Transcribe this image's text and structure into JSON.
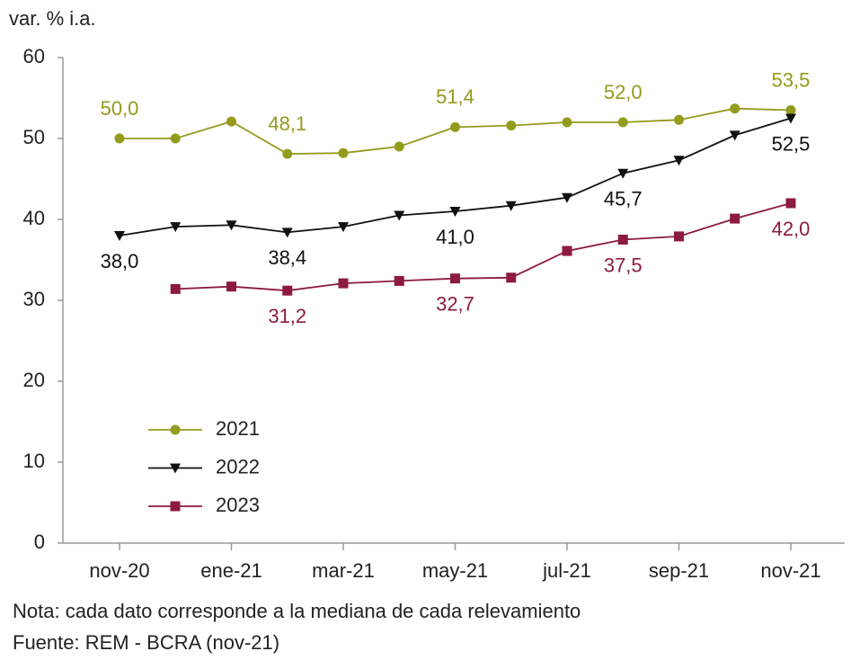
{
  "chart_data": {
    "type": "line",
    "y_label": "var. % i.a.",
    "categories": [
      "nov-20",
      null,
      "ene-21",
      null,
      "mar-21",
      null,
      "may-21",
      null,
      "jul-21",
      null,
      "sep-21",
      null,
      "nov-21"
    ],
    "series": [
      {
        "name": "2021",
        "color": "#939b1c",
        "marker": "circle",
        "values": [
          50.0,
          50.0,
          52.1,
          48.1,
          48.2,
          49.0,
          51.4,
          51.6,
          52.0,
          52.0,
          52.3,
          53.7,
          53.5
        ],
        "value_labels": [
          "50,0",
          null,
          null,
          "48,1",
          null,
          null,
          "51,4",
          null,
          null,
          "52,0",
          null,
          null,
          "53,5"
        ]
      },
      {
        "name": "2022",
        "color": "#111111",
        "marker": "triangle-down",
        "values": [
          38.0,
          39.1,
          39.3,
          38.4,
          39.1,
          40.5,
          41.0,
          41.7,
          42.7,
          45.7,
          47.3,
          50.4,
          52.5
        ],
        "value_labels": [
          "38,0",
          null,
          null,
          "38,4",
          null,
          null,
          "41,0",
          null,
          null,
          "45,7",
          null,
          null,
          "52,5"
        ]
      },
      {
        "name": "2023",
        "color": "#8c1a42",
        "marker": "square",
        "values": [
          null,
          31.4,
          31.7,
          31.2,
          32.1,
          32.4,
          32.7,
          32.8,
          36.1,
          37.5,
          37.9,
          40.1,
          42.0
        ],
        "value_labels": [
          null,
          null,
          null,
          "31,2",
          null,
          null,
          "32,7",
          null,
          null,
          "37,5",
          null,
          null,
          "42,0"
        ]
      }
    ],
    "ylim": [
      0,
      60
    ],
    "yticks": [
      0,
      10,
      20,
      30,
      40,
      50,
      60
    ],
    "grid": false,
    "legend": "lower-left",
    "notes": [
      "Nota: cada dato corresponde a la mediana de cada relevamiento",
      "Fuente: REM - BCRA (nov-21)"
    ]
  }
}
